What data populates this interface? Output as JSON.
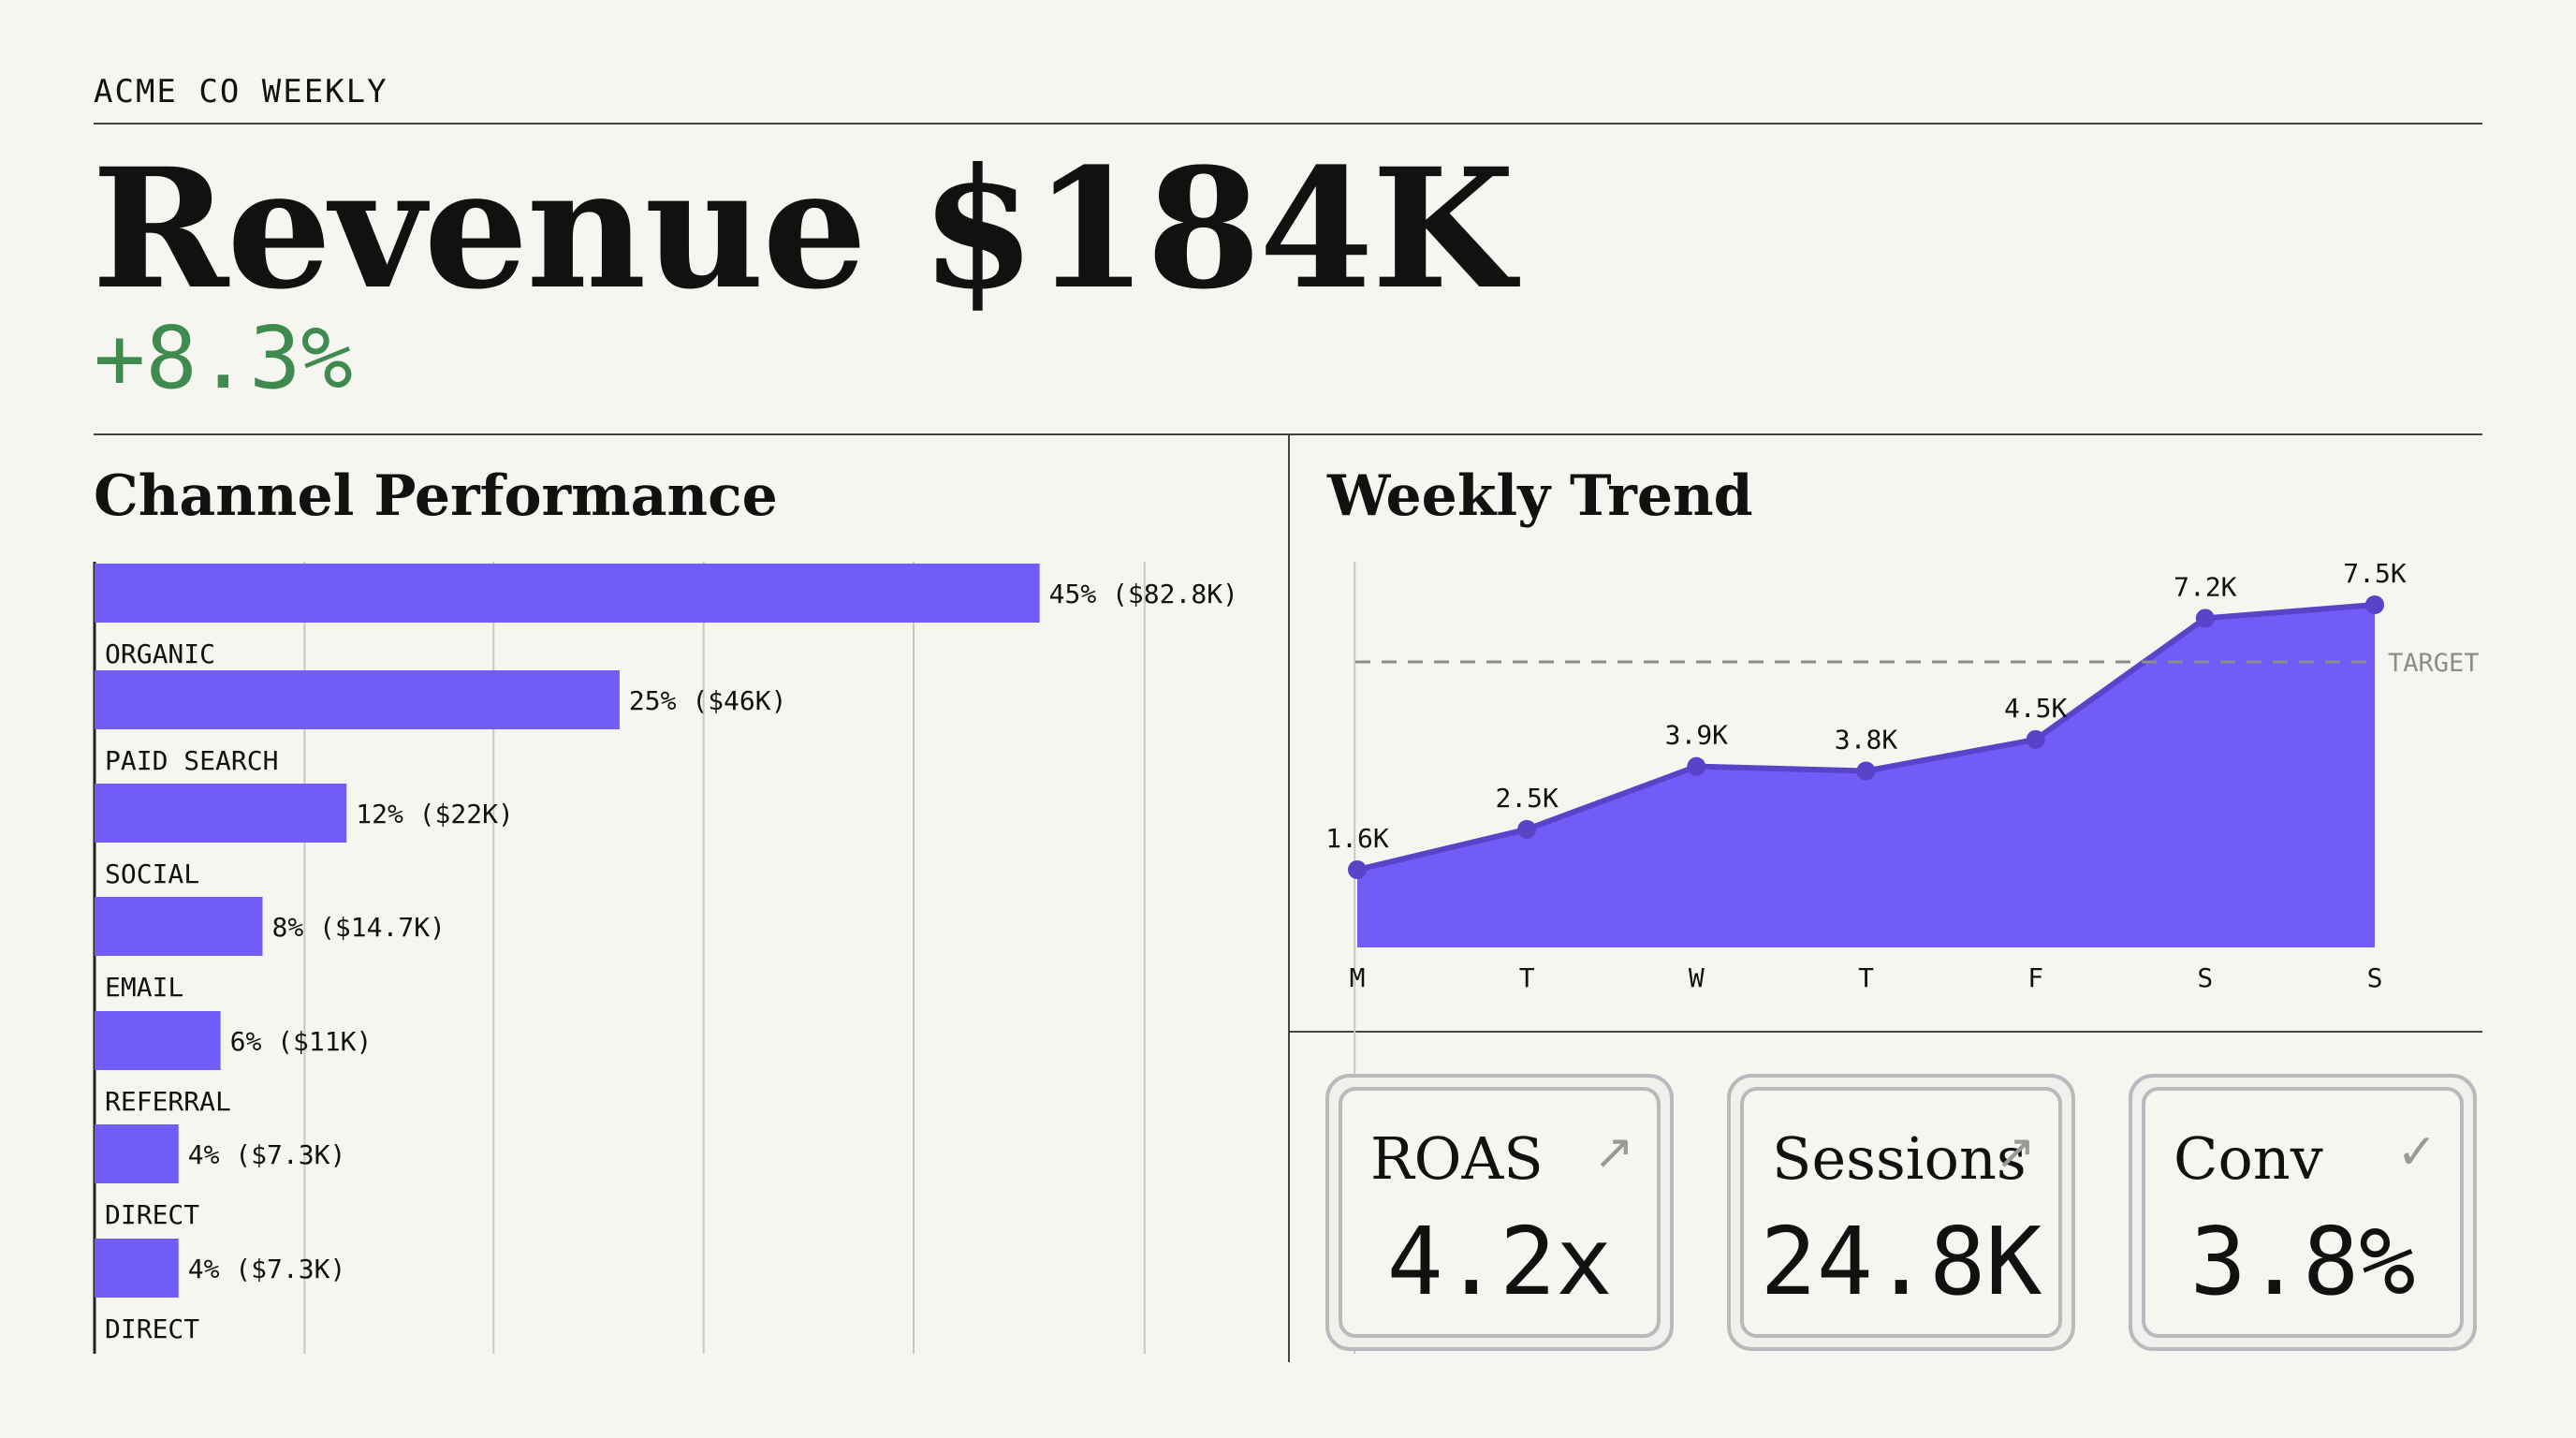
{
  "header": {
    "brand": "ACME CO WEEKLY",
    "headline": "Revenue $184K",
    "delta": "+8.3%"
  },
  "colors": {
    "accent": "#715cf7",
    "accent_dark": "#5a43c9",
    "positive": "#3f8a4f",
    "grid": "#c8c8c3",
    "target": "#8c8c8c"
  },
  "channel": {
    "title": "Channel Performance"
  },
  "trend": {
    "title": "Weekly Trend"
  },
  "kpis": [
    {
      "label": "ROAS",
      "value": "4.2x",
      "icon": "arrow-up-right-icon",
      "glyph": "↗"
    },
    {
      "label": "Sessions",
      "value": "24.8K",
      "icon": "arrow-up-right-icon",
      "glyph": "↗"
    },
    {
      "label": "Conv",
      "value": "3.8%",
      "icon": "check-icon",
      "glyph": "✓"
    }
  ],
  "chart_data": [
    {
      "type": "bar",
      "orientation": "horizontal",
      "title": "Channel Performance",
      "categories": [
        "ORGANIC",
        "PAID SEARCH",
        "SOCIAL",
        "EMAIL",
        "REFERRAL",
        "DIRECT",
        "DIRECT"
      ],
      "values": [
        45,
        25,
        12,
        8,
        6,
        4,
        4
      ],
      "data_labels": [
        "45% ($82.8K)",
        "25% ($46K)",
        "12% ($22K)",
        "8% ($14.7K)",
        "6% ($11K)",
        "4% ($7.3K)",
        "4% ($7.3K)"
      ],
      "xlim": [
        0,
        55
      ],
      "grid": true
    },
    {
      "type": "area",
      "title": "Weekly Trend",
      "categories": [
        "M",
        "T",
        "W",
        "T",
        "F",
        "S",
        "S"
      ],
      "values": [
        1.6,
        2.5,
        3.9,
        3.8,
        4.5,
        7.2,
        7.5
      ],
      "data_labels": [
        "1.6K",
        "2.5K",
        "3.9K",
        "3.8K",
        "4.5K",
        "7.2K",
        "7.5K"
      ],
      "target": {
        "label": "TARGET"
      },
      "grid": false
    }
  ]
}
